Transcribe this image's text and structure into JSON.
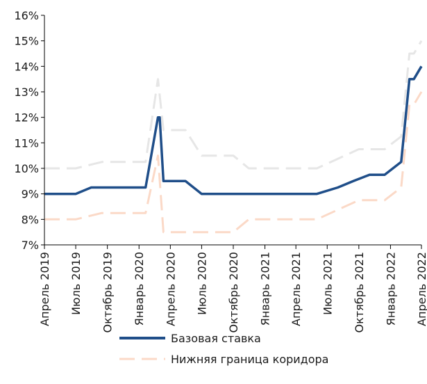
{
  "chart_data": {
    "type": "line",
    "title": "",
    "xlabel": "",
    "ylabel": "",
    "x_start": "2019-04-01",
    "x_end": "2022-04-01",
    "x_ticks": [
      {
        "label": "Апрель 2019",
        "date": "2019-04-01"
      },
      {
        "label": "Июль 2019",
        "date": "2019-07-01"
      },
      {
        "label": "Октябрь 2019",
        "date": "2019-10-01"
      },
      {
        "label": "Январь 2020",
        "date": "2020-01-01"
      },
      {
        "label": "Апрель 2020",
        "date": "2020-04-01"
      },
      {
        "label": "Июль 2020",
        "date": "2020-07-01"
      },
      {
        "label": "Октябрь 2020",
        "date": "2020-10-01"
      },
      {
        "label": "Январь 2021",
        "date": "2021-01-01"
      },
      {
        "label": "Апрель 2021",
        "date": "2021-04-01"
      },
      {
        "label": "Июль 2021",
        "date": "2021-07-01"
      },
      {
        "label": "Октябрь 2021",
        "date": "2021-10-01"
      },
      {
        "label": "Январь 2022",
        "date": "2022-01-01"
      },
      {
        "label": "Апрель 2022",
        "date": "2022-04-01"
      }
    ],
    "y_ticks": [
      "7%",
      "8%",
      "9%",
      "10%",
      "11%",
      "12%",
      "13%",
      "14%",
      "15%",
      "16%"
    ],
    "ylim": [
      7,
      16
    ],
    "y_unit": "%",
    "grid": false,
    "legend_position": "bottom",
    "series": [
      {
        "name": "Базовая ставка",
        "color": "#1f4e89",
        "style": "solid",
        "points": [
          [
            "2019-04-01",
            9.0
          ],
          [
            "2019-07-01",
            9.0
          ],
          [
            "2019-08-15",
            9.25
          ],
          [
            "2019-10-01",
            9.25
          ],
          [
            "2020-01-01",
            9.25
          ],
          [
            "2020-01-20",
            9.25
          ],
          [
            "2020-02-25",
            12.0
          ],
          [
            "2020-03-01",
            12.0
          ],
          [
            "2020-03-12",
            9.5
          ],
          [
            "2020-05-15",
            9.5
          ],
          [
            "2020-07-01",
            9.0
          ],
          [
            "2020-10-01",
            9.0
          ],
          [
            "2021-01-01",
            9.0
          ],
          [
            "2021-06-01",
            9.0
          ],
          [
            "2021-08-01",
            9.25
          ],
          [
            "2021-09-15",
            9.5
          ],
          [
            "2021-11-01",
            9.75
          ],
          [
            "2021-12-15",
            9.75
          ],
          [
            "2022-02-01",
            10.25
          ],
          [
            "2022-02-25",
            13.5
          ],
          [
            "2022-03-10",
            13.5
          ],
          [
            "2022-04-01",
            14.0
          ]
        ]
      },
      {
        "name": "Нижняя граница коридора",
        "color": "#fbd9c7",
        "style": "dashed",
        "points": [
          [
            "2019-04-01",
            8.0
          ],
          [
            "2019-07-01",
            8.0
          ],
          [
            "2019-09-15",
            8.25
          ],
          [
            "2020-01-20",
            8.25
          ],
          [
            "2020-02-25",
            10.5
          ],
          [
            "2020-03-12",
            7.5
          ],
          [
            "2020-10-01",
            7.5
          ],
          [
            "2020-11-15",
            8.0
          ],
          [
            "2021-06-01",
            8.0
          ],
          [
            "2021-10-01",
            8.75
          ],
          [
            "2021-12-15",
            8.75
          ],
          [
            "2022-02-01",
            9.25
          ],
          [
            "2022-02-25",
            12.5
          ],
          [
            "2022-03-10",
            12.5
          ],
          [
            "2022-04-01",
            13.0
          ]
        ]
      },
      {
        "name": "",
        "color": "#e6e6e6",
        "style": "dashed",
        "points": [
          [
            "2019-04-01",
            10.0
          ],
          [
            "2019-07-01",
            10.0
          ],
          [
            "2019-09-15",
            10.25
          ],
          [
            "2020-01-20",
            10.25
          ],
          [
            "2020-02-25",
            13.5
          ],
          [
            "2020-03-12",
            11.5
          ],
          [
            "2020-05-15",
            11.5
          ],
          [
            "2020-07-01",
            10.5
          ],
          [
            "2020-10-01",
            10.5
          ],
          [
            "2020-11-15",
            10.0
          ],
          [
            "2021-06-01",
            10.0
          ],
          [
            "2021-10-01",
            10.75
          ],
          [
            "2021-12-15",
            10.75
          ],
          [
            "2022-02-01",
            11.25
          ],
          [
            "2022-02-25",
            14.5
          ],
          [
            "2022-03-10",
            14.5
          ],
          [
            "2022-04-01",
            15.0
          ]
        ]
      }
    ]
  },
  "legend": [
    {
      "label": "Базовая ставка",
      "color": "#1f4e89",
      "style": "solid"
    },
    {
      "label": "Нижняя граница коридора",
      "color": "#fbd9c7",
      "style": "dashed"
    }
  ]
}
